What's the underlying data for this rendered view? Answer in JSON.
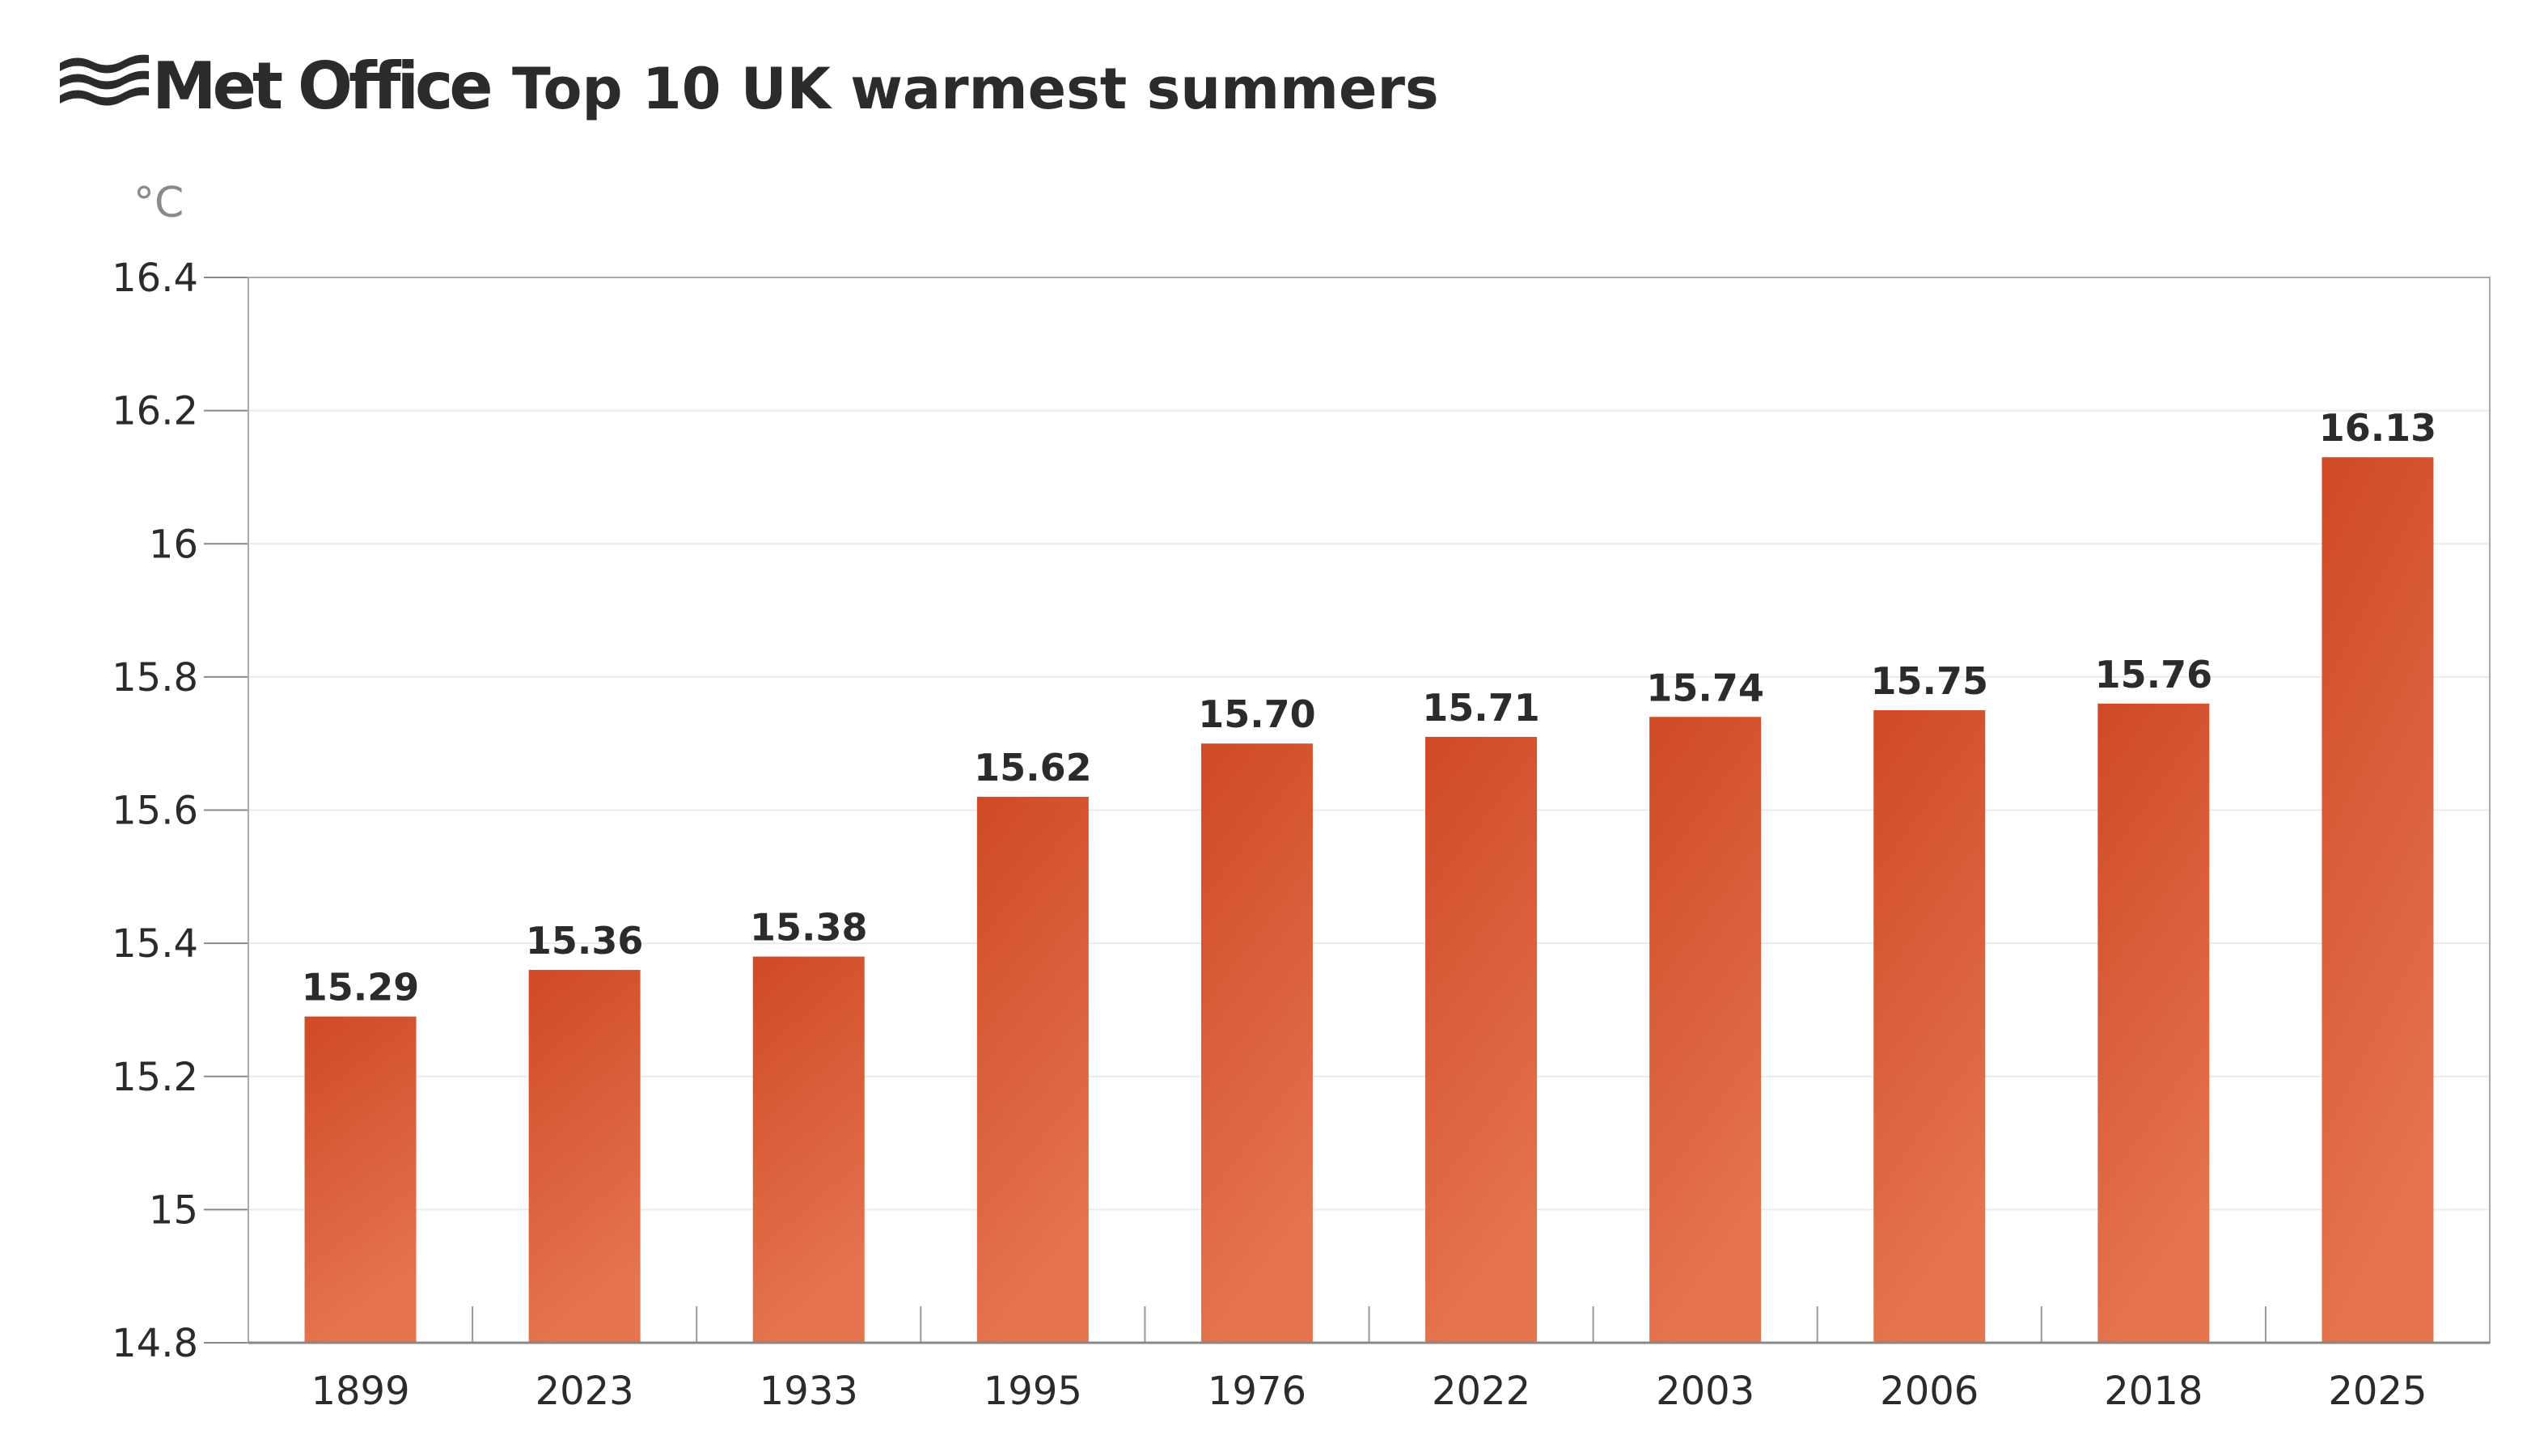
{
  "brand": {
    "name": "Met Office",
    "logo_icon": "wave-lines-icon"
  },
  "chart_data": {
    "type": "bar",
    "title": "Top 10 UK warmest summers",
    "ylabel": "°C",
    "xlabel": "",
    "categories": [
      "1899",
      "2023",
      "1933",
      "1995",
      "1976",
      "2022",
      "2003",
      "2006",
      "2018",
      "2025"
    ],
    "values": [
      15.29,
      15.36,
      15.38,
      15.62,
      15.7,
      15.71,
      15.74,
      15.75,
      15.76,
      16.13
    ],
    "value_labels": [
      "15.29",
      "15.36",
      "15.38",
      "15.62",
      "15.70",
      "15.71",
      "15.74",
      "15.75",
      "15.76",
      "16.13"
    ],
    "ylim": [
      14.8,
      16.4
    ],
    "yticks": [
      "14.8",
      "15",
      "15.2",
      "15.4",
      "15.6",
      "15.8",
      "16",
      "16.2",
      "16.4"
    ],
    "grid": true,
    "colors": {
      "bar_top": "#cf4a25",
      "bar_bottom": "#e5744f"
    }
  }
}
